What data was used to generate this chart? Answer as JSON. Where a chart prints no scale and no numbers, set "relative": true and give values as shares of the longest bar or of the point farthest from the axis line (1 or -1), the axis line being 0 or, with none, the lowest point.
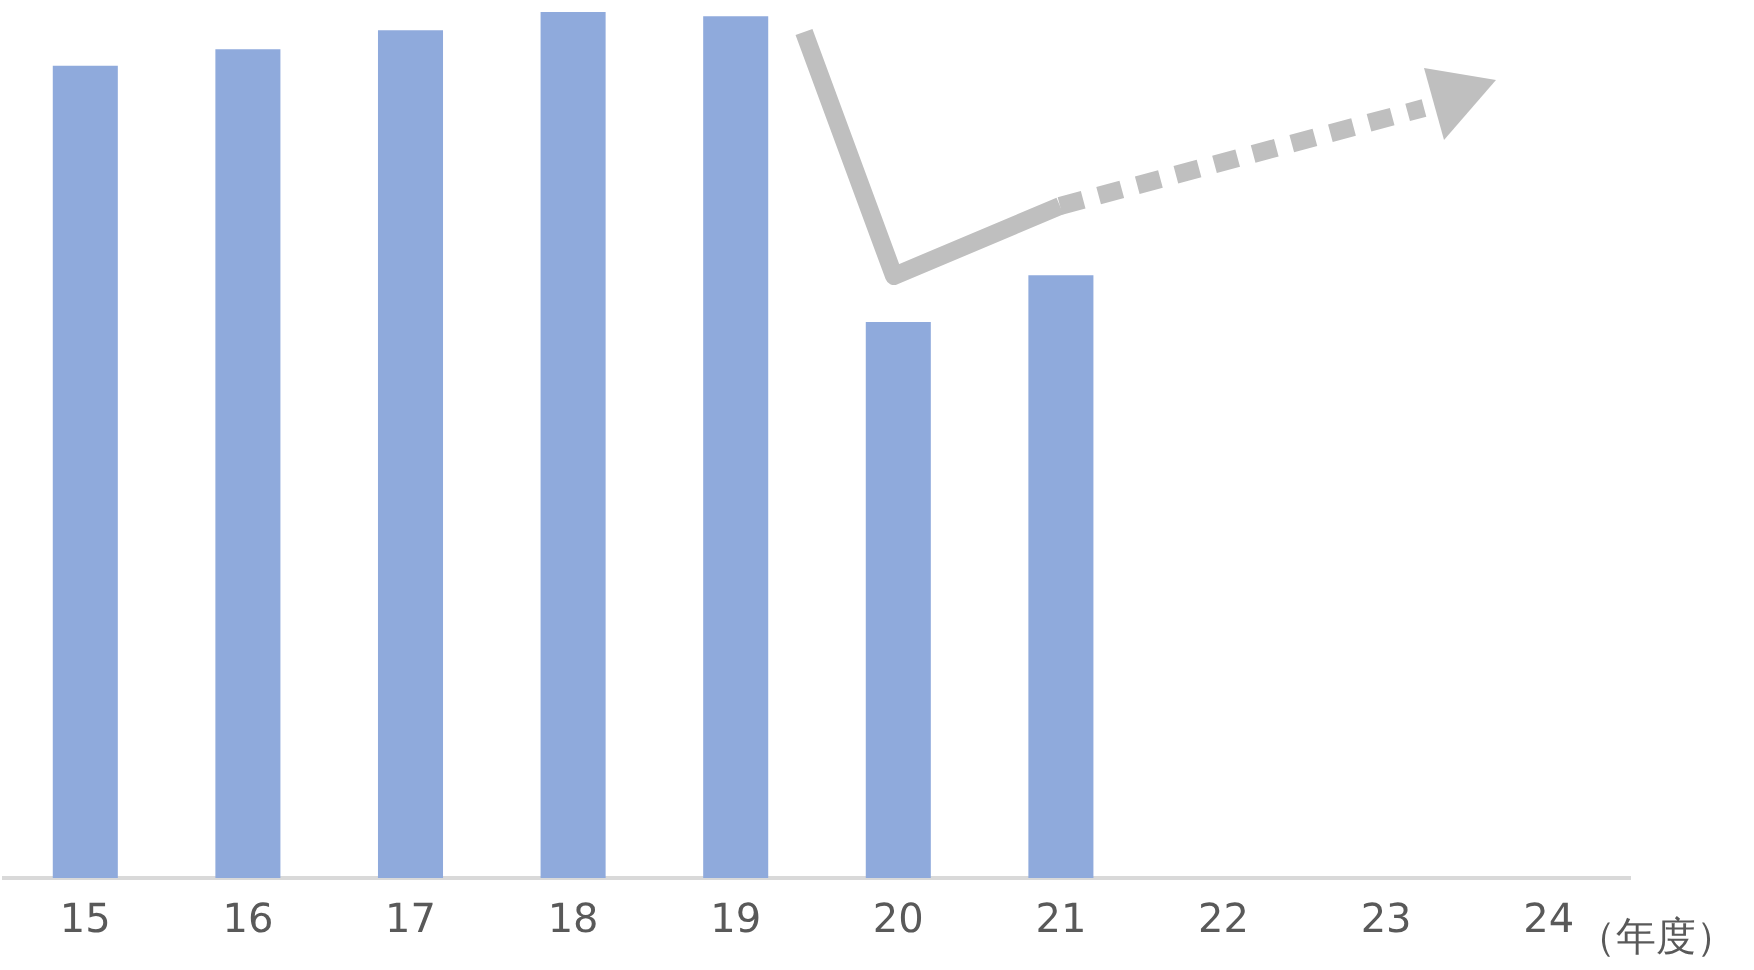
{
  "chart_data": {
    "type": "bar",
    "relative": true,
    "xlabel": "（年度）",
    "color": "#8faadc",
    "categories": [
      "15",
      "16",
      "17",
      "18",
      "19",
      "20",
      "21",
      "22",
      "23",
      "24"
    ],
    "values": [
      0.938,
      0.957,
      0.979,
      1,
      0.995,
      0.642,
      0.696,
      null,
      null,
      null
    ]
  }
}
